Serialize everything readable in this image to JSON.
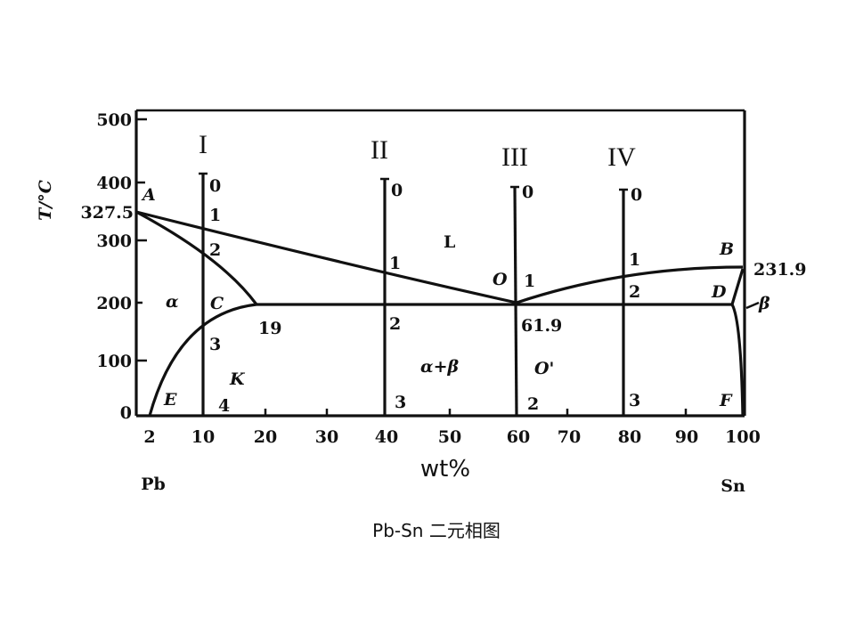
{
  "title": "Pb-Sn 二元相图",
  "x_axis": {
    "label": "wt%",
    "ticks": [
      "2",
      "10",
      "20",
      "30",
      "40",
      "50",
      "60",
      "70",
      "80",
      "90",
      "100"
    ],
    "left_end": "Pb",
    "right_end": "Sn"
  },
  "y_axis": {
    "label": "T/°C",
    "ticks": [
      "500",
      "400",
      "300",
      "200",
      "100",
      "0"
    ],
    "special_tick": "327.5"
  },
  "points": {
    "A": "A",
    "B": "B",
    "C": "C",
    "D": "D",
    "E": "E",
    "F": "F",
    "K": "K",
    "O": "O",
    "O_prime": "O'"
  },
  "values": {
    "b_temp": "231.9",
    "eutectic_comp": "61.9",
    "c_comp": "19"
  },
  "phases": {
    "alpha": "α",
    "beta": "β",
    "liquid": "L",
    "alpha_beta": "α+β"
  },
  "alloys": [
    {
      "name": "I",
      "marks": [
        "0",
        "1",
        "2",
        "3",
        "4"
      ]
    },
    {
      "name": "II",
      "marks": [
        "0",
        "1",
        "2",
        "3"
      ]
    },
    {
      "name": "III",
      "marks": [
        "0",
        "1",
        "2"
      ]
    },
    {
      "name": "IV",
      "marks": [
        "0",
        "1",
        "2",
        "3"
      ]
    }
  ]
}
